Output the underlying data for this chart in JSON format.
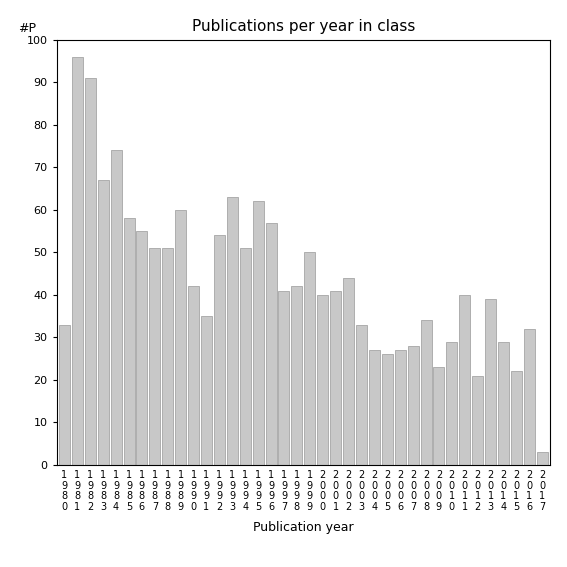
{
  "title": "Publications per year in class",
  "xlabel": "Publication year",
  "ylabel": "#P",
  "bar_color": "#c8c8c8",
  "edge_color": "#999999",
  "years": [
    1980,
    1981,
    1982,
    1983,
    1984,
    1985,
    1986,
    1987,
    1988,
    1989,
    1990,
    1991,
    1992,
    1993,
    1994,
    1995,
    1996,
    1997,
    1998,
    1999,
    2000,
    2001,
    2002,
    2003,
    2004,
    2005,
    2006,
    2007,
    2008,
    2009,
    2010,
    2011,
    2012,
    2013,
    2014,
    2015,
    2016,
    2017
  ],
  "values": [
    33,
    96,
    91,
    67,
    74,
    58,
    55,
    51,
    51,
    60,
    42,
    35,
    54,
    63,
    51,
    62,
    57,
    41,
    42,
    50,
    40,
    41,
    44,
    33,
    27,
    26,
    27,
    28,
    34,
    23,
    29,
    40,
    21,
    39,
    29,
    22,
    32,
    3
  ],
  "ylim": [
    0,
    100
  ],
  "yticks": [
    0,
    10,
    20,
    30,
    40,
    50,
    60,
    70,
    80,
    90,
    100
  ],
  "bg_color": "#ffffff",
  "line_color": "#000000",
  "title_fontsize": 11,
  "axis_label_fontsize": 9,
  "tick_fontsize": 8,
  "bar_width": 0.85
}
